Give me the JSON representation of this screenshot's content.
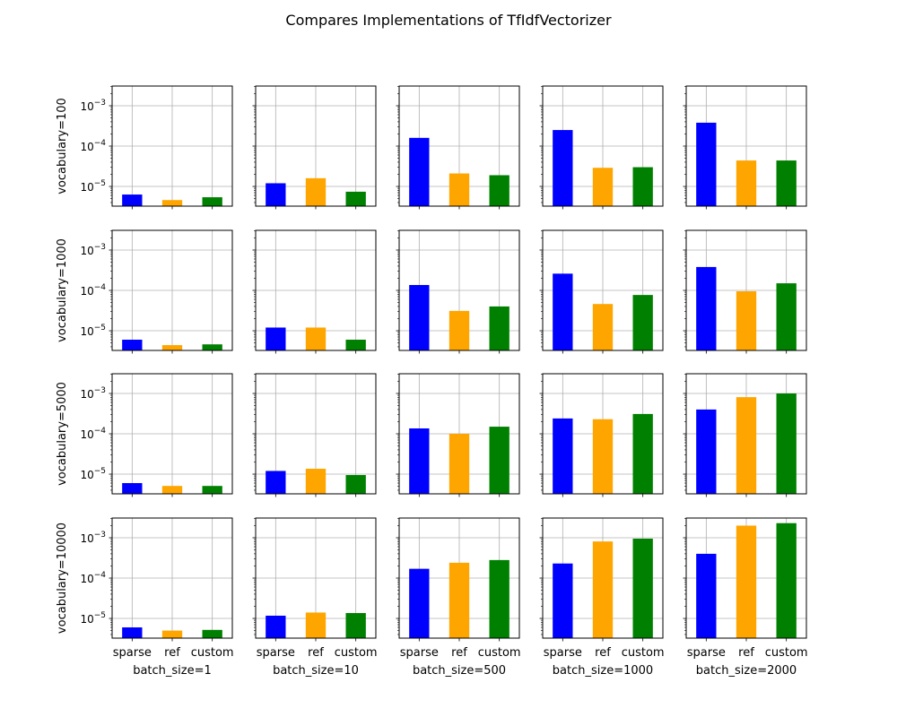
{
  "chart_data": {
    "type": "bar",
    "title": "Compares Implementations of TfIdfVectorizer",
    "yscale": "log",
    "ylim": [
      3.25e-06,
      0.00308
    ],
    "ytick_labels": [
      "10^-5",
      "10^-4",
      "10^-3"
    ],
    "ytick_values": [
      1e-05,
      0.0001,
      0.001
    ],
    "grid": true,
    "categories": [
      "sparse",
      "ref",
      "custom"
    ],
    "colors": [
      "#0000ff",
      "#ffa500",
      "#008000"
    ],
    "col_labels": [
      "batch_size=1",
      "batch_size=10",
      "batch_size=500",
      "batch_size=1000",
      "batch_size=2000"
    ],
    "row_labels": [
      "vocabulary=100",
      "vocabulary=1000",
      "vocabulary=5000",
      "vocabulary=10000"
    ],
    "values": [
      [
        [
          6.3e-06,
          4.6e-06,
          5.4e-06
        ],
        [
          1.2e-05,
          1.6e-05,
          7.4e-06
        ],
        [
          0.00016,
          2.1e-05,
          1.9e-05
        ],
        [
          0.00025,
          2.9e-05,
          3e-05
        ],
        [
          0.00038,
          4.4e-05,
          4.4e-05
        ]
      ],
      [
        [
          6e-06,
          4.4e-06,
          4.6e-06
        ],
        [
          1.2e-05,
          1.2e-05,
          6e-06
        ],
        [
          0.000136,
          3.1e-05,
          4e-05
        ],
        [
          0.00026,
          4.6e-05,
          7.7e-05
        ],
        [
          0.00038,
          9.5e-05,
          0.00015
        ]
      ],
      [
        [
          6e-06,
          5.1e-06,
          5.1e-06
        ],
        [
          1.2e-05,
          1.36e-05,
          9.5e-06
        ],
        [
          0.000136,
          0.0001,
          0.00015
        ],
        [
          0.00024,
          0.00023,
          0.00031
        ],
        [
          0.0004,
          0.00081,
          0.001
        ]
      ],
      [
        [
          6e-06,
          5e-06,
          5.2e-06
        ],
        [
          1.17e-05,
          1.4e-05,
          1.36e-05
        ],
        [
          0.00017,
          0.00024,
          0.00028
        ],
        [
          0.00023,
          0.00081,
          0.00095
        ],
        [
          0.0004,
          0.002,
          0.0023
        ]
      ]
    ]
  }
}
